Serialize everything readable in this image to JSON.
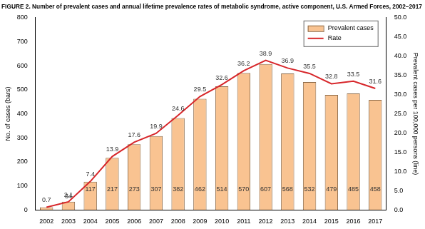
{
  "chart_data": {
    "type": "bar",
    "title": "FIGURE 2. Number of prevalent cases and annual lifetime prevalence rates of metabolic syndrome, active component, U.S. Armed Forces, 2002–2017",
    "categories": [
      "2002",
      "2003",
      "2004",
      "2005",
      "2006",
      "2007",
      "2008",
      "2009",
      "2010",
      "2011",
      "2012",
      "2013",
      "2014",
      "2015",
      "2016",
      "2017"
    ],
    "series": [
      {
        "name": "Prevalent cases",
        "type": "bar",
        "color": "#f9c391",
        "values": [
          11,
          34,
          117,
          217,
          273,
          307,
          382,
          462,
          514,
          570,
          607,
          568,
          532,
          479,
          485,
          458
        ],
        "value_labels": [
          null,
          "34",
          "117",
          "217",
          "273",
          "307",
          "382",
          "462",
          "514",
          "570",
          "607",
          "568",
          "532",
          "479",
          "485",
          "458"
        ]
      },
      {
        "name": "Rate",
        "type": "line",
        "color": "#d7262a",
        "axis": "y2",
        "values": [
          0.7,
          2.1,
          7.4,
          13.9,
          17.6,
          19.9,
          24.6,
          29.5,
          32.6,
          36.2,
          38.9,
          36.9,
          35.5,
          32.8,
          33.5,
          31.6
        ]
      }
    ],
    "y_label": "No. of cases (bars)",
    "y2_label": "Prevalent cases per 100,000 persons (line)",
    "ylim": [
      0,
      800
    ],
    "yticks": [
      0,
      100,
      200,
      300,
      400,
      500,
      600,
      700,
      800
    ],
    "y2lim": [
      0,
      50
    ],
    "y2ticks": [
      {
        "value": 0,
        "label": "0.0"
      },
      {
        "value": 5,
        "label": "5.0"
      },
      {
        "value": 10,
        "label": "10.0"
      },
      {
        "value": 15,
        "label": "15.0"
      },
      {
        "value": 20,
        "label": "20.0"
      },
      {
        "value": 25,
        "label": "25.0"
      },
      {
        "value": 30,
        "label": "30.0"
      },
      {
        "value": 35,
        "label": "35.0"
      },
      {
        "value": 40,
        "label": "40.0"
      },
      {
        "value": 45,
        "label": "45.0"
      },
      {
        "value": 50,
        "label": "50.0"
      }
    ],
    "grid": false,
    "legend": "top right",
    "data_labels": true
  }
}
